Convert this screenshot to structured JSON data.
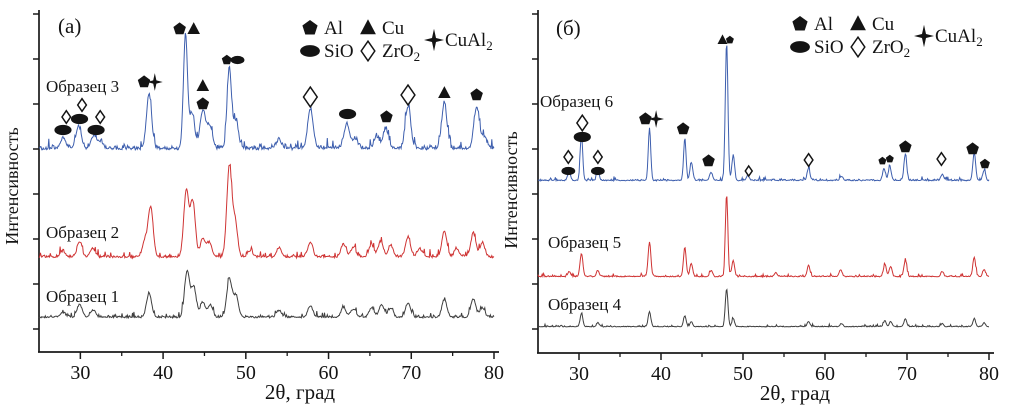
{
  "chart_data": {
    "type": "line",
    "title": "",
    "description": "Two-panel XRD intensity patterns of six samples with phase markers",
    "x_axis": {
      "label": "2θ, град",
      "range": [
        25,
        80
      ],
      "ticks": [
        30,
        40,
        50,
        60,
        70,
        80
      ],
      "minor_ticks": [
        35,
        45,
        55,
        65,
        75
      ]
    },
    "y_axis": {
      "label": "Интенсивность"
    },
    "legend": {
      "items": [
        {
          "symbol": "pentagon",
          "label": "Al",
          "sub": ""
        },
        {
          "symbol": "triangle",
          "label": "Cu",
          "sub": ""
        },
        {
          "symbol": "ellipse",
          "label": "SiO",
          "sub": ""
        },
        {
          "symbol": "diamond",
          "label": "ZrO",
          "sub": "2"
        },
        {
          "symbol": "star",
          "label": "CuAl",
          "sub": "2"
        }
      ]
    },
    "colors": {
      "sample_black": "#3f3f3f",
      "sample_red": "#cf3434",
      "sample_blue": "#3e5fae",
      "marker": "#141414",
      "axis": "#1a1a1a"
    },
    "panels": [
      {
        "panel_label": "(a)",
        "samples": [
          {
            "name": "Образец 1",
            "color_key": "sample_black",
            "baseline": 318,
            "noise": 3.4,
            "peak_width": 0.3,
            "peaks": [
              [
                27.9,
                5
              ],
              [
                29.9,
                13
              ],
              [
                31.5,
                7
              ],
              [
                38.3,
                24
              ],
              [
                42.9,
                46
              ],
              [
                43.7,
                30
              ],
              [
                44.8,
                15
              ],
              [
                45.7,
                12
              ],
              [
                48,
                38
              ],
              [
                48.8,
                22
              ],
              [
                54,
                7
              ],
              [
                57.8,
                11
              ],
              [
                61.8,
                10
              ],
              [
                63,
                8
              ],
              [
                65.2,
                9
              ],
              [
                66.4,
                12
              ],
              [
                67.5,
                9
              ],
              [
                69.6,
                14
              ],
              [
                74,
                17
              ],
              [
                77.5,
                18
              ],
              [
                78.6,
                9
              ]
            ]
          },
          {
            "name": "Образец 2",
            "color_key": "sample_red",
            "baseline": 258,
            "noise": 4.2,
            "peak_width": 0.3,
            "peaks": [
              [
                27.9,
                6
              ],
              [
                29.9,
                15
              ],
              [
                31.5,
                8
              ],
              [
                37.8,
                16
              ],
              [
                38.5,
                50
              ],
              [
                42.8,
                67
              ],
              [
                43.6,
                55
              ],
              [
                44.8,
                18
              ],
              [
                45.6,
                14
              ],
              [
                48,
                89
              ],
              [
                48.7,
                35
              ],
              [
                50.5,
                6
              ],
              [
                54,
                9
              ],
              [
                57.8,
                15
              ],
              [
                61.8,
                13
              ],
              [
                63,
                10
              ],
              [
                65.2,
                12
              ],
              [
                66.3,
                15
              ],
              [
                67.5,
                12
              ],
              [
                69.6,
                20
              ],
              [
                71,
                8
              ],
              [
                74,
                26
              ],
              [
                75.5,
                8
              ],
              [
                77.5,
                24
              ],
              [
                78.6,
                14
              ]
            ]
          },
          {
            "name": "Образец 3",
            "color_key": "sample_blue",
            "baseline": 150,
            "noise": 6.2,
            "peak_width": 0.32,
            "peaks": [
              [
                27.9,
                10
              ],
              [
                29.8,
                22
              ],
              [
                31.6,
                12
              ],
              [
                32.4,
                7
              ],
              [
                38.3,
                53
              ],
              [
                42.7,
                115,
                0.24
              ],
              [
                43.5,
                35
              ],
              [
                44.8,
                38
              ],
              [
                45.6,
                22
              ],
              [
                48,
                80,
                0.26
              ],
              [
                48.8,
                28
              ],
              [
                54,
                8
              ],
              [
                57.8,
                40
              ],
              [
                62.2,
                25
              ],
              [
                63.2,
                10
              ],
              [
                65.8,
                12
              ],
              [
                66.9,
                20
              ],
              [
                69.6,
                42
              ],
              [
                74,
                45
              ],
              [
                77.9,
                42
              ],
              [
                78.8,
                12
              ]
            ]
          }
        ],
        "markers": [
          [
            27.9,
            20,
            "ellipse",
            "m"
          ],
          [
            28.3,
            33,
            "diamond",
            "s"
          ],
          [
            29.9,
            31,
            "ellipse",
            "m"
          ],
          [
            30.2,
            45,
            "diamond",
            "s"
          ],
          [
            31.9,
            20,
            "ellipse",
            "m"
          ],
          [
            32.4,
            33,
            "diamond",
            "s"
          ],
          [
            37.7,
            68,
            "pentagon",
            "m"
          ],
          [
            39,
            68,
            "star",
            "m"
          ],
          [
            42,
            121,
            "pentagon",
            "m"
          ],
          [
            43.7,
            121,
            "triangle",
            "m"
          ],
          [
            44.8,
            64,
            "triangle",
            "m"
          ],
          [
            44.8,
            46,
            "pentagon",
            "m"
          ],
          [
            47.7,
            90,
            "pentagon",
            "s"
          ],
          [
            49,
            90,
            "ellipse",
            "s"
          ],
          [
            57.8,
            53,
            "diamond",
            "l"
          ],
          [
            62.3,
            36,
            "ellipse",
            "m"
          ],
          [
            67,
            33,
            "pentagon",
            "m"
          ],
          [
            69.6,
            55,
            "diamond",
            "l"
          ],
          [
            74,
            57,
            "triangle",
            "m"
          ],
          [
            77.9,
            55,
            "pentagon",
            "m"
          ]
        ]
      },
      {
        "panel_label": "(б)",
        "samples": [
          {
            "name": "Образец 4",
            "color_key": "sample_black",
            "baseline": 327,
            "noise": 1.4,
            "peak_width": 0.16,
            "peaks": [
              [
                30.3,
                13
              ],
              [
                32.3,
                4
              ],
              [
                38.6,
                15
              ],
              [
                42.9,
                11
              ],
              [
                43.7,
                5
              ],
              [
                48,
                38
              ],
              [
                48.8,
                8
              ],
              [
                58,
                5
              ],
              [
                62,
                3
              ],
              [
                67.3,
                6
              ],
              [
                68,
                5
              ],
              [
                69.8,
                8
              ],
              [
                74.3,
                3
              ],
              [
                78.2,
                8
              ],
              [
                79.4,
                4
              ]
            ]
          },
          {
            "name": "Образец 5",
            "color_key": "sample_red",
            "baseline": 277,
            "noise": 1.9,
            "peak_width": 0.17,
            "peaks": [
              [
                28.8,
                5
              ],
              [
                30.3,
                23
              ],
              [
                32.3,
                6
              ],
              [
                38.6,
                34
              ],
              [
                42.9,
                28
              ],
              [
                43.7,
                13
              ],
              [
                46.1,
                6
              ],
              [
                48,
                82,
                0.15
              ],
              [
                48.8,
                16
              ],
              [
                54,
                4
              ],
              [
                58,
                11
              ],
              [
                61.9,
                7
              ],
              [
                67.3,
                12
              ],
              [
                68,
                10
              ],
              [
                69.8,
                16
              ],
              [
                74.3,
                5
              ],
              [
                78.2,
                19
              ],
              [
                79.4,
                7
              ]
            ]
          },
          {
            "name": "Образец 6",
            "color_key": "sample_blue",
            "baseline": 181,
            "noise": 2.3,
            "peak_width": 0.17,
            "peaks": [
              [
                28.8,
                9
              ],
              [
                30.3,
                47,
                0.15
              ],
              [
                32.3,
                9
              ],
              [
                38.6,
                52,
                0.15
              ],
              [
                42.9,
                42,
                0.15
              ],
              [
                43.7,
                18
              ],
              [
                46.1,
                8
              ],
              [
                48,
                138,
                0.16
              ],
              [
                48.8,
                24
              ],
              [
                50.6,
                5
              ],
              [
                58,
                12
              ],
              [
                62,
                4
              ],
              [
                67.2,
                12
              ],
              [
                67.9,
                14
              ],
              [
                69.8,
                26
              ],
              [
                74.3,
                6
              ],
              [
                78.2,
                28
              ],
              [
                79.4,
                10
              ]
            ]
          }
        ],
        "markers": [
          [
            28.7,
            10,
            "ellipse",
            "s"
          ],
          [
            28.7,
            24,
            "diamond",
            "s"
          ],
          [
            30.4,
            44,
            "ellipse",
            "m"
          ],
          [
            30.4,
            58,
            "diamond",
            "m"
          ],
          [
            32.3,
            10,
            "ellipse",
            "s"
          ],
          [
            32.3,
            24,
            "diamond",
            "s"
          ],
          [
            38.1,
            62,
            "pentagon",
            "m"
          ],
          [
            39.4,
            62,
            "star",
            "m"
          ],
          [
            42.7,
            52,
            "pentagon",
            "m"
          ],
          [
            45.8,
            20,
            "pentagon",
            "m"
          ],
          [
            47.5,
            141,
            "triangle",
            "s"
          ],
          [
            48.4,
            141,
            "pentagon",
            "xs"
          ],
          [
            50.7,
            10,
            "diamond",
            "xs"
          ],
          [
            58,
            21,
            "diamond",
            "s"
          ],
          [
            67,
            20,
            "pentagon",
            "xs"
          ],
          [
            67.9,
            22,
            "pentagon",
            "xs"
          ],
          [
            69.8,
            34,
            "pentagon",
            "m"
          ],
          [
            74.2,
            22,
            "diamond",
            "s"
          ],
          [
            78,
            32,
            "pentagon",
            "m"
          ],
          [
            79.5,
            17,
            "pentagon",
            "s"
          ]
        ]
      }
    ]
  }
}
